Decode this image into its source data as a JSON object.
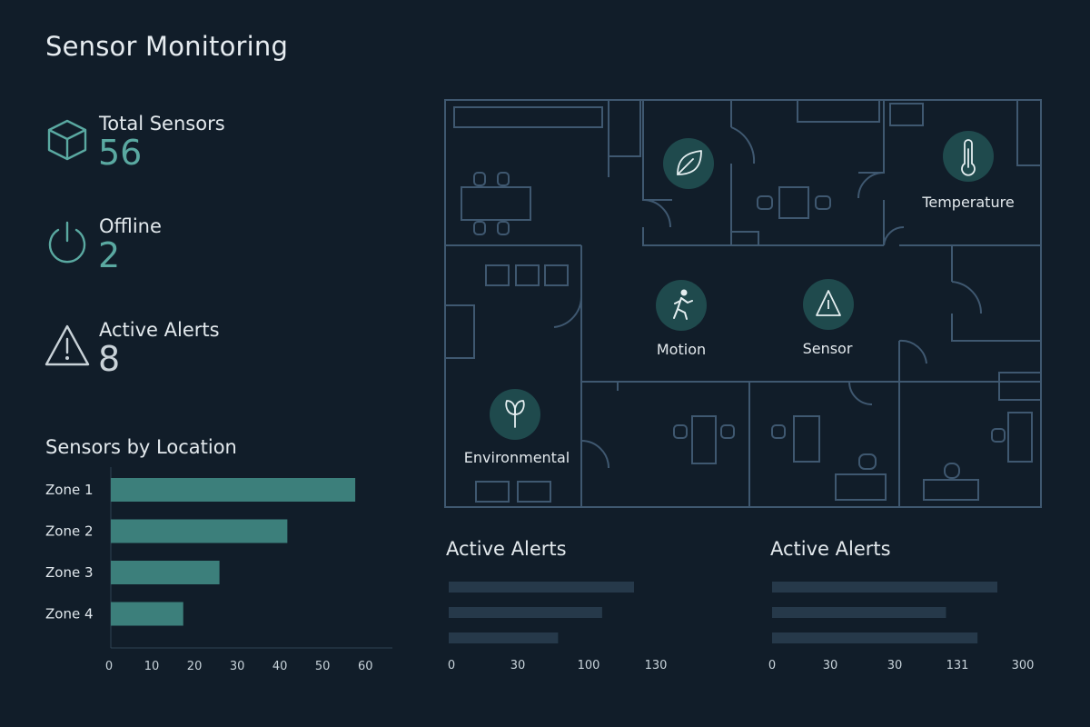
{
  "page": {
    "title": "Sensor Monitoring"
  },
  "stats": [
    {
      "label": "Total Sensors",
      "value": "56",
      "icon": "cube-icon",
      "color": "#5aa9a1"
    },
    {
      "label": "Offline",
      "value": "2",
      "icon": "power-icon",
      "color": "#5aa9a1"
    },
    {
      "label": "Active Alerts",
      "value": "8",
      "icon": "warning-icon",
      "color": "#c9d2d8"
    }
  ],
  "floorplan": {
    "markers": [
      {
        "icon": "leaf-icon",
        "label": ""
      },
      {
        "icon": "thermometer-icon",
        "label": "Temperature"
      },
      {
        "icon": "motion-icon",
        "label": "Motion"
      },
      {
        "icon": "alert-triangle-icon",
        "label": "Sensor"
      },
      {
        "icon": "sprout-icon",
        "label": "Environmental"
      }
    ],
    "marker_color": "#1f4a4d",
    "line_color": "#3f5870"
  },
  "chart_data": [
    {
      "type": "bar",
      "orientation": "horizontal",
      "title": "Sensors by Location",
      "categories": [
        "Zone 1",
        "Zone 2",
        "Zone 3",
        "Zone 4"
      ],
      "values": [
        54,
        39,
        24,
        16
      ],
      "xlim": [
        0,
        60
      ],
      "xticks": [
        "0",
        "10",
        "20",
        "30",
        "40",
        "50",
        "60"
      ],
      "color": "#3c7f7b"
    },
    {
      "type": "bar",
      "orientation": "horizontal",
      "title": "Active Alerts",
      "categories": [
        "",
        "",
        ""
      ],
      "values": [
        122,
        101,
        72
      ],
      "xticks": [
        "0",
        "30",
        "100",
        "130"
      ],
      "color": "#26394a"
    },
    {
      "type": "bar",
      "orientation": "horizontal",
      "title": "Active Alerts",
      "categories": [
        "",
        "",
        ""
      ],
      "values": [
        250,
        193,
        228
      ],
      "xticks": [
        "0",
        "30",
        "30",
        "131",
        "300"
      ],
      "color": "#26394a"
    }
  ]
}
